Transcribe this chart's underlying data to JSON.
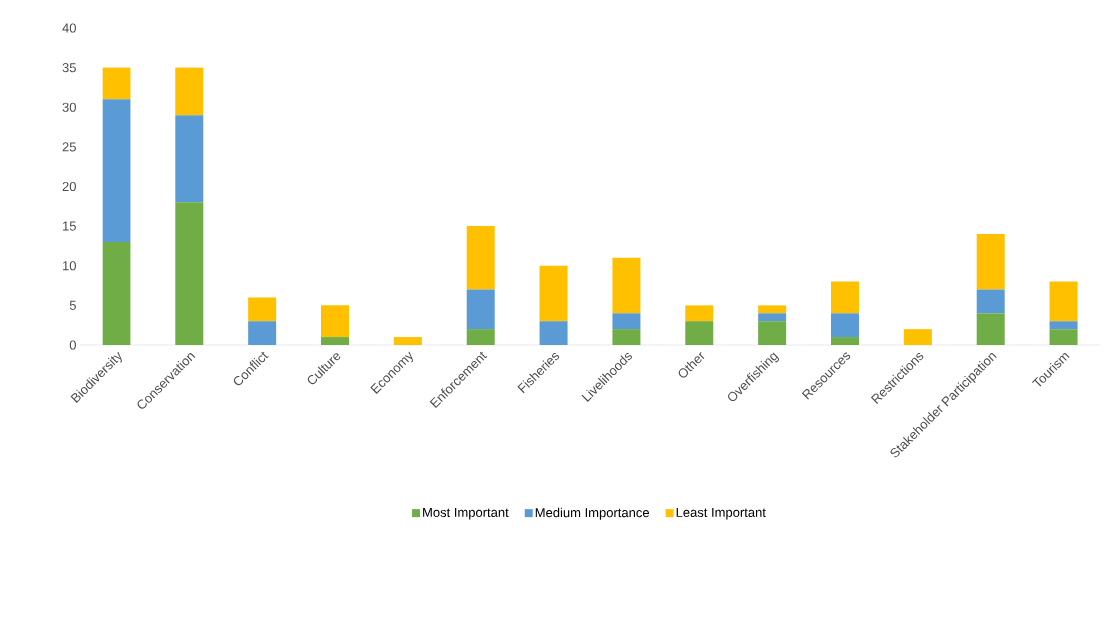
{
  "chart_data": {
    "type": "bar",
    "stacked": true,
    "categories": [
      "Biodiversity",
      "Conservation",
      "Conflict",
      "Culture",
      "Economy",
      "Enforcement",
      "Fisheries",
      "Livelihoods",
      "Other",
      "Overfishing",
      "Resources",
      "Restrictions",
      "Stakeholder Participation",
      "Tourism"
    ],
    "series": [
      {
        "name": "Most Important",
        "color": "#70ad47",
        "values": [
          13,
          18,
          0,
          1,
          0,
          2,
          0,
          2,
          3,
          3,
          1,
          0,
          4,
          2
        ]
      },
      {
        "name": "Medium Importance",
        "color": "#5b9bd5",
        "values": [
          18,
          11,
          3,
          0,
          0,
          5,
          3,
          2,
          0,
          1,
          3,
          0,
          3,
          1
        ]
      },
      {
        "name": "Least Important",
        "color": "#ffc000",
        "values": [
          4,
          6,
          3,
          4,
          1,
          8,
          7,
          7,
          2,
          1,
          4,
          2,
          7,
          5
        ]
      }
    ],
    "ylim": [
      0,
      40
    ],
    "yticks": [
      0,
      5,
      10,
      15,
      20,
      25,
      30,
      35,
      40
    ],
    "grid": false,
    "legend": "bottom"
  }
}
